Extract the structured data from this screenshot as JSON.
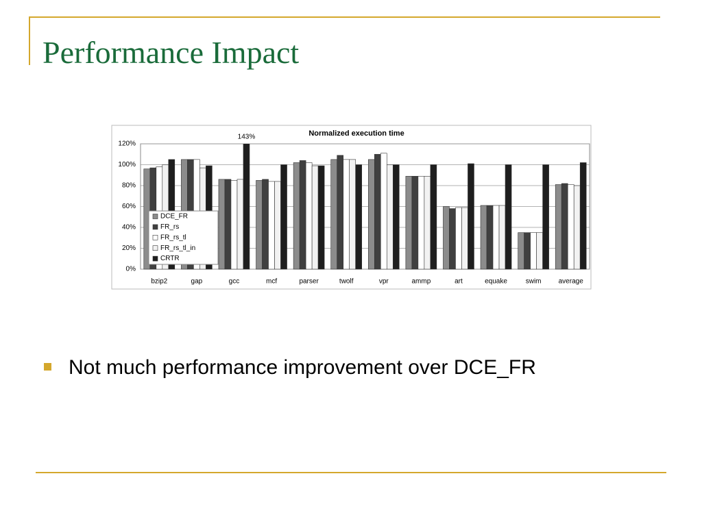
{
  "title": "Performance Impact",
  "bullets": [
    "Not much performance improvement over DCE_FR"
  ],
  "chart_data": {
    "type": "bar",
    "title": "Normalized execution time",
    "categories": [
      "bzip2",
      "gap",
      "gcc",
      "mcf",
      "parser",
      "twolf",
      "vpr",
      "ammp",
      "art",
      "equake",
      "swim",
      "average"
    ],
    "series": [
      {
        "name": "DCE_FR",
        "color": "#8c8c8c",
        "values": [
          96,
          105,
          86,
          85,
          102,
          105,
          105,
          89,
          60,
          61,
          35,
          81
        ]
      },
      {
        "name": "FR_rs",
        "color": "#404040",
        "values": [
          97,
          105,
          86,
          86,
          104,
          109,
          110,
          89,
          58,
          61,
          35,
          82
        ]
      },
      {
        "name": "FR_rs_tl",
        "color": "#ffffff",
        "values": [
          98,
          105,
          85,
          84,
          102,
          105,
          111,
          89,
          59,
          61,
          35,
          81
        ]
      },
      {
        "name": "FR_rs_tl_in",
        "color": "#f2f2f2",
        "values": [
          100,
          97,
          86,
          84,
          99,
          105,
          100,
          89,
          59,
          61,
          35,
          80
        ]
      },
      {
        "name": "CRTR",
        "color": "#1e1e1e",
        "values": [
          105,
          99,
          143,
          100,
          99,
          100,
          100,
          100,
          101,
          100,
          100,
          102
        ],
        "value_labels": [
          null,
          null,
          "143%",
          null,
          null,
          null,
          null,
          null,
          null,
          null,
          null,
          null
        ]
      }
    ],
    "ylim": [
      0,
      120
    ],
    "yticks": [
      {
        "value": 0,
        "label": "0%"
      },
      {
        "value": 20,
        "label": "20%"
      },
      {
        "value": 40,
        "label": "40%"
      },
      {
        "value": 60,
        "label": "60%"
      },
      {
        "value": 80,
        "label": "80%"
      },
      {
        "value": 100,
        "label": "100%"
      },
      {
        "value": 120,
        "label": "120%"
      }
    ],
    "grid": true
  }
}
